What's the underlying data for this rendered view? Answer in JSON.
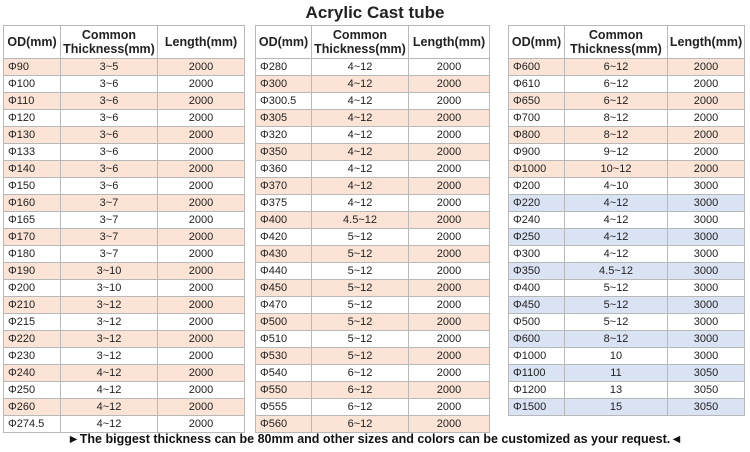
{
  "title": "Acrylic Cast tube",
  "headers": {
    "od": "OD(mm)",
    "thickness": "Common Thickness(mm)",
    "length": "Length(mm)"
  },
  "tables": [
    {
      "rows": [
        {
          "od": "Φ90",
          "thickness": "3~5",
          "length": "2000",
          "highlight": "pink"
        },
        {
          "od": "Φ100",
          "thickness": "3~6",
          "length": "2000",
          "highlight": "white"
        },
        {
          "od": "Φ110",
          "thickness": "3~6",
          "length": "2000",
          "highlight": "pink"
        },
        {
          "od": "Φ120",
          "thickness": "3~6",
          "length": "2000",
          "highlight": "white"
        },
        {
          "od": "Φ130",
          "thickness": "3~6",
          "length": "2000",
          "highlight": "pink"
        },
        {
          "od": "Φ133",
          "thickness": "3~6",
          "length": "2000",
          "highlight": "white"
        },
        {
          "od": "Φ140",
          "thickness": "3~6",
          "length": "2000",
          "highlight": "pink"
        },
        {
          "od": "Φ150",
          "thickness": "3~6",
          "length": "2000",
          "highlight": "white"
        },
        {
          "od": "Φ160",
          "thickness": "3~7",
          "length": "2000",
          "highlight": "pink"
        },
        {
          "od": "Φ165",
          "thickness": "3~7",
          "length": "2000",
          "highlight": "white"
        },
        {
          "od": "Φ170",
          "thickness": "3~7",
          "length": "2000",
          "highlight": "pink"
        },
        {
          "od": "Φ180",
          "thickness": "3~7",
          "length": "2000",
          "highlight": "white"
        },
        {
          "od": "Φ190",
          "thickness": "3~10",
          "length": "2000",
          "highlight": "pink"
        },
        {
          "od": "Φ200",
          "thickness": "3~10",
          "length": "2000",
          "highlight": "white"
        },
        {
          "od": "Φ210",
          "thickness": "3~12",
          "length": "2000",
          "highlight": "pink"
        },
        {
          "od": "Φ215",
          "thickness": "3~12",
          "length": "2000",
          "highlight": "white"
        },
        {
          "od": "Φ220",
          "thickness": "3~12",
          "length": "2000",
          "highlight": "pink"
        },
        {
          "od": "Φ230",
          "thickness": "3~12",
          "length": "2000",
          "highlight": "white"
        },
        {
          "od": "Φ240",
          "thickness": "4~12",
          "length": "2000",
          "highlight": "pink"
        },
        {
          "od": "Φ250",
          "thickness": "4~12",
          "length": "2000",
          "highlight": "white"
        },
        {
          "od": "Φ260",
          "thickness": "4~12",
          "length": "2000",
          "highlight": "pink"
        },
        {
          "od": "Φ274.5",
          "thickness": "4~12",
          "length": "2000",
          "highlight": "white"
        }
      ]
    },
    {
      "rows": [
        {
          "od": "Φ280",
          "thickness": "4~12",
          "length": "2000",
          "highlight": "white"
        },
        {
          "od": "Φ300",
          "thickness": "4~12",
          "length": "2000",
          "highlight": "pink"
        },
        {
          "od": "Φ300.5",
          "thickness": "4~12",
          "length": "2000",
          "highlight": "white"
        },
        {
          "od": "Φ305",
          "thickness": "4~12",
          "length": "2000",
          "highlight": "pink"
        },
        {
          "od": "Φ320",
          "thickness": "4~12",
          "length": "2000",
          "highlight": "white"
        },
        {
          "od": "Φ350",
          "thickness": "4~12",
          "length": "2000",
          "highlight": "pink"
        },
        {
          "od": "Φ360",
          "thickness": "4~12",
          "length": "2000",
          "highlight": "white"
        },
        {
          "od": "Φ370",
          "thickness": "4~12",
          "length": "2000",
          "highlight": "pink"
        },
        {
          "od": "Φ375",
          "thickness": "4~12",
          "length": "2000",
          "highlight": "white"
        },
        {
          "od": "Φ400",
          "thickness": "4.5~12",
          "length": "2000",
          "highlight": "pink"
        },
        {
          "od": "Φ420",
          "thickness": "5~12",
          "length": "2000",
          "highlight": "white"
        },
        {
          "od": "Φ430",
          "thickness": "5~12",
          "length": "2000",
          "highlight": "pink"
        },
        {
          "od": "Φ440",
          "thickness": "5~12",
          "length": "2000",
          "highlight": "white"
        },
        {
          "od": "Φ450",
          "thickness": "5~12",
          "length": "2000",
          "highlight": "pink"
        },
        {
          "od": "Φ470",
          "thickness": "5~12",
          "length": "2000",
          "highlight": "white"
        },
        {
          "od": "Φ500",
          "thickness": "5~12",
          "length": "2000",
          "highlight": "pink"
        },
        {
          "od": "Φ510",
          "thickness": "5~12",
          "length": "2000",
          "highlight": "white"
        },
        {
          "od": "Φ530",
          "thickness": "5~12",
          "length": "2000",
          "highlight": "pink"
        },
        {
          "od": "Φ540",
          "thickness": "6~12",
          "length": "2000",
          "highlight": "white"
        },
        {
          "od": "Φ550",
          "thickness": "6~12",
          "length": "2000",
          "highlight": "pink"
        },
        {
          "od": "Φ555",
          "thickness": "6~12",
          "length": "2000",
          "highlight": "white"
        },
        {
          "od": "Φ560",
          "thickness": "6~12",
          "length": "2000",
          "highlight": "pink"
        }
      ]
    },
    {
      "rows": [
        {
          "od": "Φ600",
          "thickness": "6~12",
          "length": "2000",
          "highlight": "pink"
        },
        {
          "od": "Φ610",
          "thickness": "6~12",
          "length": "2000",
          "highlight": "white"
        },
        {
          "od": "Φ650",
          "thickness": "6~12",
          "length": "2000",
          "highlight": "pink"
        },
        {
          "od": "Φ700",
          "thickness": "8~12",
          "length": "2000",
          "highlight": "white"
        },
        {
          "od": "Φ800",
          "thickness": "8~12",
          "length": "2000",
          "highlight": "pink"
        },
        {
          "od": "Φ900",
          "thickness": "9~12",
          "length": "2000",
          "highlight": "white"
        },
        {
          "od": "Φ1000",
          "thickness": "10~12",
          "length": "2000",
          "highlight": "pink"
        },
        {
          "od": "Φ200",
          "thickness": "4~10",
          "length": "3000",
          "highlight": "white"
        },
        {
          "od": "Φ220",
          "thickness": "4~12",
          "length": "3000",
          "highlight": "blue"
        },
        {
          "od": "Φ240",
          "thickness": "4~12",
          "length": "3000",
          "highlight": "white"
        },
        {
          "od": "Φ250",
          "thickness": "4~12",
          "length": "3000",
          "highlight": "blue"
        },
        {
          "od": "Φ300",
          "thickness": "4~12",
          "length": "3000",
          "highlight": "white"
        },
        {
          "od": "Φ350",
          "thickness": "4.5~12",
          "length": "3000",
          "highlight": "blue"
        },
        {
          "od": "Φ400",
          "thickness": "5~12",
          "length": "3000",
          "highlight": "white"
        },
        {
          "od": "Φ450",
          "thickness": "5~12",
          "length": "3000",
          "highlight": "blue"
        },
        {
          "od": "Φ500",
          "thickness": "5~12",
          "length": "3000",
          "highlight": "white"
        },
        {
          "od": "Φ600",
          "thickness": "8~12",
          "length": "3000",
          "highlight": "blue"
        },
        {
          "od": "Φ1000",
          "thickness": "10",
          "length": "3000",
          "highlight": "white"
        },
        {
          "od": "Φ1100",
          "thickness": "11",
          "length": "3050",
          "highlight": "blue"
        },
        {
          "od": "Φ1200",
          "thickness": "13",
          "length": "3050",
          "highlight": "white"
        },
        {
          "od": "Φ1500",
          "thickness": "15",
          "length": "3050",
          "highlight": "blue"
        }
      ]
    }
  ],
  "footer": "►The biggest thickness can be 80mm and other sizes and colors can be customized as your request.◄"
}
